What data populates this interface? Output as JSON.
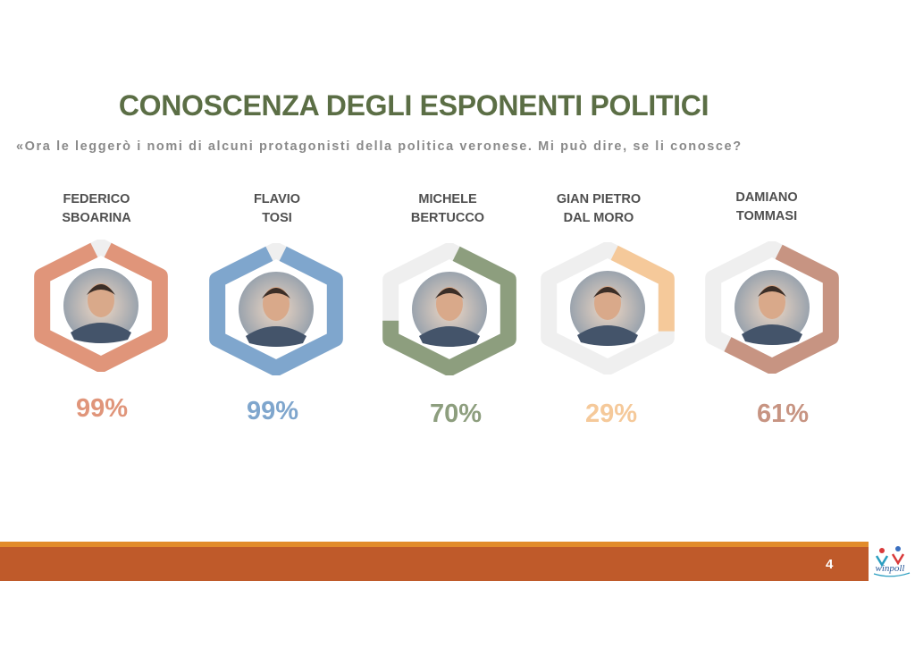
{
  "title": "CONOSCENZA DEGLI ESPONENTI POLITICI",
  "subtitle": "«Ora le leggerò i nomi di alcuni protagonisti della politica veronese. Mi può dire, se li conosce?",
  "page_number": "4",
  "logo": {
    "text": "winpoll",
    "icon": "winpoll-logo"
  },
  "colors": {
    "title": "#5b6e45",
    "track": "#efefef",
    "footer_main": "#bf5a2a",
    "footer_accent": "#e28b2a"
  },
  "chart_data": {
    "type": "bar",
    "categories": [
      "FEDERICO SBOARINA",
      "FLAVIO TOSI",
      "MICHELE BERTUCCO",
      "GIAN PIETRO DAL MORO",
      "DAMIANO TOMMASI"
    ],
    "values": [
      99,
      99,
      70,
      29,
      61
    ],
    "value_unit": "%",
    "ylim": [
      0,
      100
    ],
    "people": [
      {
        "line1": "FEDERICO",
        "line2": "SBOARINA",
        "value": 99,
        "label": "99%",
        "color": "#e0957a",
        "photo": "portrait-photo"
      },
      {
        "line1": "FLAVIO",
        "line2": "TOSI",
        "value": 99,
        "label": "99%",
        "color": "#7fa6cd",
        "photo": "portrait-photo"
      },
      {
        "line1": "MICHELE",
        "line2": "BERTUCCO",
        "value": 70,
        "label": "70%",
        "color": "#8d9e7e",
        "photo": "portrait-photo"
      },
      {
        "line1": "GIAN PIETRO",
        "line2": "DAL MORO",
        "value": 29,
        "label": "29%",
        "color": "#f5c99a",
        "photo": "portrait-photo"
      },
      {
        "line1": "DAMIANO",
        "line2": "TOMMASI",
        "value": 61,
        "label": "61%",
        "color": "#c79482",
        "photo": "portrait-photo"
      }
    ]
  }
}
